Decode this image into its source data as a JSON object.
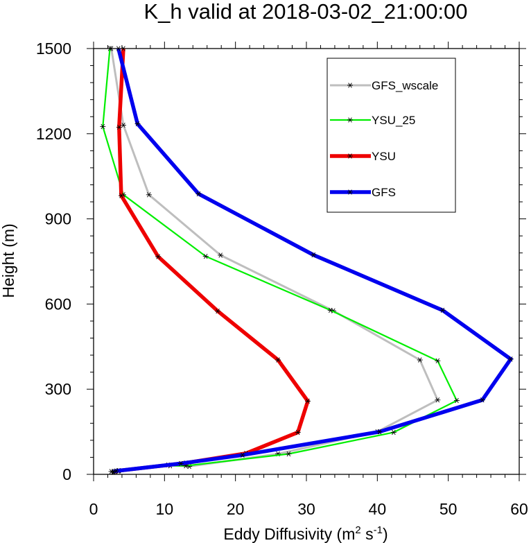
{
  "chart_data": {
    "type": "line",
    "title": "K_h valid at 2018-03-02_21:00:00",
    "xlabel": "Eddy Diffusivity (m",
    "xlabel_sup1": "2",
    "xlabel_mid": " s",
    "xlabel_sup2": "-1",
    "xlabel_end": ")",
    "ylabel": "Height (m)",
    "xlim": [
      0,
      60
    ],
    "ylim": [
      0,
      1500
    ],
    "xticks": [
      0,
      10,
      20,
      30,
      40,
      50,
      60
    ],
    "yticks": [
      0,
      300,
      600,
      900,
      1200,
      1500
    ],
    "grid": false,
    "legend_position": "top-right",
    "series": [
      {
        "name": "GFS_wscale",
        "color": "#bebebe",
        "points": [
          [
            2.5,
            10
          ],
          [
            3.5,
            13
          ],
          [
            10.5,
            33
          ],
          [
            13.5,
            28
          ],
          [
            26,
            72
          ],
          [
            40,
            150
          ],
          [
            48.5,
            262
          ],
          [
            46,
            403
          ],
          [
            33.8,
            576
          ],
          [
            17.9,
            772
          ],
          [
            7.8,
            985
          ],
          [
            4.2,
            1230
          ],
          [
            2.5,
            1500
          ]
        ]
      },
      {
        "name": "YSU_25",
        "color": "#00ee00",
        "points": [
          [
            2.8,
            7
          ],
          [
            3.5,
            11
          ],
          [
            10.8,
            30
          ],
          [
            13,
            30
          ],
          [
            27.5,
            72
          ],
          [
            42.3,
            148
          ],
          [
            51.2,
            260
          ],
          [
            48.5,
            400
          ],
          [
            33.4,
            578
          ],
          [
            15.8,
            768
          ],
          [
            4.2,
            985
          ],
          [
            1.3,
            1225
          ],
          [
            2.3,
            1500
          ]
        ]
      },
      {
        "name": "YSU",
        "color": "#ee0000",
        "points": [
          [
            3,
            10
          ],
          [
            3.6,
            13
          ],
          [
            13,
            40
          ],
          [
            21.5,
            74
          ],
          [
            28.8,
            148
          ],
          [
            30.2,
            258
          ],
          [
            26,
            403
          ],
          [
            17.5,
            575
          ],
          [
            9.1,
            767
          ],
          [
            3.9,
            982
          ],
          [
            3.6,
            1223
          ],
          [
            4.2,
            1500
          ]
        ]
      },
      {
        "name": "GFS",
        "color": "#0000ee",
        "points": [
          [
            2.8,
            10
          ],
          [
            3.2,
            12
          ],
          [
            12.3,
            38
          ],
          [
            21,
            68
          ],
          [
            40.3,
            150
          ],
          [
            54.8,
            262
          ],
          [
            58.8,
            406
          ],
          [
            49.2,
            578
          ],
          [
            31,
            773
          ],
          [
            14.8,
            988
          ],
          [
            6.2,
            1235
          ],
          [
            3.5,
            1500
          ]
        ]
      }
    ]
  }
}
